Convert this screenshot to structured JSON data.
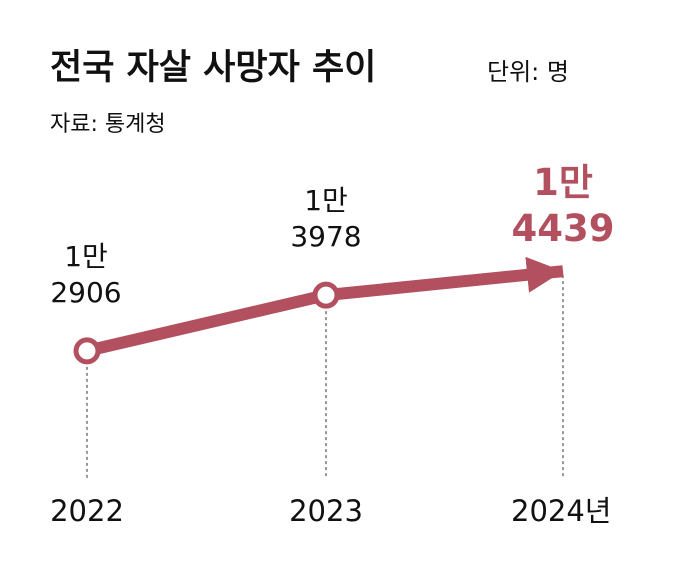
{
  "header": {
    "title": "전국 자살 사망자 추이",
    "unit": "단위: 명",
    "source": "자료: 통계청"
  },
  "chart_data": {
    "type": "line",
    "title": "전국 자살 사망자 추이",
    "unit_label": "단위: 명",
    "source": "자료: 통계청",
    "categories": [
      "2022",
      "2023",
      "2024년"
    ],
    "x": [
      2022,
      2023,
      2024
    ],
    "values": [
      12906,
      13978,
      14439
    ],
    "data_labels": [
      [
        "1만",
        "2906"
      ],
      [
        "1만",
        "3978"
      ],
      [
        "1만",
        "4439"
      ]
    ],
    "highlight_index": 2,
    "grid": false,
    "legend": "none",
    "ylim": [
      11000,
      16000
    ]
  },
  "colors": {
    "line": "#b3505f",
    "highlight_text": "#b3505f",
    "text": "#111111",
    "dash": "#555555",
    "marker_fill": "#ffffff"
  }
}
